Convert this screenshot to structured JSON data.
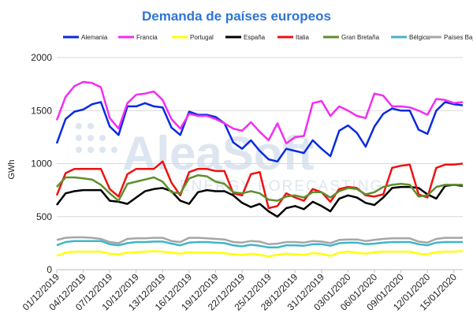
{
  "chart_data": {
    "type": "line",
    "title": "Demanda de países europeos",
    "xlabel": "",
    "ylabel": "GWh",
    "ylim": [
      0,
      2000
    ],
    "yticks": [
      0,
      500,
      1000,
      1500,
      2000
    ],
    "grid": "horizontal",
    "legend_position": "top",
    "watermark": {
      "big": "AleaSoft",
      "small": "ENERGY FORECASTING"
    },
    "x": [
      "01/12/2019",
      "02/12/2019",
      "03/12/2019",
      "04/12/2019",
      "05/12/2019",
      "06/12/2019",
      "07/12/2019",
      "08/12/2019",
      "09/12/2019",
      "10/12/2019",
      "11/12/2019",
      "12/12/2019",
      "13/12/2019",
      "14/12/2019",
      "15/12/2019",
      "16/12/2019",
      "17/12/2019",
      "18/12/2019",
      "19/12/2019",
      "20/12/2019",
      "21/12/2019",
      "22/12/2019",
      "23/12/2019",
      "24/12/2019",
      "25/12/2019",
      "26/12/2019",
      "27/12/2019",
      "28/12/2019",
      "29/12/2019",
      "30/12/2019",
      "31/12/2019",
      "01/01/2020",
      "02/01/2020",
      "03/01/2020",
      "04/01/2020",
      "05/01/2020",
      "06/01/2020",
      "07/01/2020",
      "08/01/2020",
      "09/01/2020",
      "10/01/2020",
      "11/01/2020",
      "12/01/2020",
      "13/01/2020",
      "14/01/2020",
      "15/01/2020",
      "16/01/2020"
    ],
    "xticks": [
      "01/12/2019",
      "04/12/2019",
      "07/12/2019",
      "10/12/2019",
      "13/12/2019",
      "16/12/2019",
      "19/12/2019",
      "22/12/2019",
      "25/12/2019",
      "28/12/2019",
      "31/12/2019",
      "03/01/2020",
      "06/01/2020",
      "09/01/2020",
      "12/01/2020",
      "15/01/2020"
    ],
    "series": [
      {
        "name": "Alemania",
        "color": "#0a2ae0",
        "values": [
          1190,
          1420,
          1490,
          1510,
          1560,
          1580,
          1350,
          1270,
          1540,
          1540,
          1570,
          1540,
          1530,
          1340,
          1270,
          1490,
          1460,
          1460,
          1440,
          1380,
          1200,
          1140,
          1220,
          1120,
          1040,
          1020,
          1140,
          1120,
          1100,
          1220,
          1140,
          1070,
          1310,
          1360,
          1290,
          1160,
          1350,
          1470,
          1520,
          1500,
          1500,
          1320,
          1280,
          1500,
          1580,
          1560,
          1550
        ]
      },
      {
        "name": "Francia",
        "color": "#f22ef2",
        "values": [
          1410,
          1630,
          1730,
          1770,
          1760,
          1720,
          1430,
          1330,
          1570,
          1650,
          1660,
          1680,
          1600,
          1420,
          1330,
          1470,
          1450,
          1450,
          1420,
          1380,
          1330,
          1310,
          1390,
          1300,
          1220,
          1380,
          1190,
          1250,
          1260,
          1570,
          1590,
          1450,
          1540,
          1500,
          1450,
          1430,
          1660,
          1640,
          1540,
          1540,
          1530,
          1500,
          1460,
          1610,
          1600,
          1570,
          1580
        ]
      },
      {
        "name": "Portugal",
        "color": "#ffff00",
        "values": [
          130,
          160,
          170,
          170,
          170,
          170,
          150,
          145,
          160,
          165,
          170,
          175,
          170,
          160,
          150,
          165,
          160,
          162,
          160,
          155,
          145,
          140,
          150,
          140,
          125,
          140,
          150,
          145,
          140,
          155,
          150,
          130,
          160,
          170,
          160,
          150,
          165,
          170,
          170,
          170,
          170,
          150,
          145,
          165,
          170,
          170,
          175
        ]
      },
      {
        "name": "España",
        "color": "#000000",
        "values": [
          610,
          720,
          740,
          750,
          750,
          750,
          650,
          640,
          620,
          680,
          740,
          760,
          770,
          740,
          650,
          620,
          730,
          750,
          740,
          740,
          700,
          630,
          590,
          620,
          550,
          500,
          580,
          600,
          570,
          640,
          600,
          550,
          670,
          700,
          680,
          630,
          610,
          680,
          770,
          780,
          780,
          770,
          710,
          670,
          790,
          800,
          790
        ]
      },
      {
        "name": "Italia",
        "color": "#ee1111",
        "values": [
          700,
          910,
          950,
          950,
          950,
          950,
          760,
          690,
          900,
          950,
          950,
          950,
          1020,
          820,
          700,
          920,
          950,
          950,
          930,
          930,
          720,
          700,
          900,
          920,
          580,
          600,
          720,
          680,
          650,
          760,
          730,
          640,
          760,
          780,
          770,
          700,
          690,
          710,
          960,
          980,
          990,
          710,
          680,
          960,
          990,
          990,
          1000
        ]
      },
      {
        "name": "Gran Bretaña",
        "color": "#5e8f2e",
        "values": [
          780,
          870,
          870,
          860,
          850,
          800,
          720,
          650,
          810,
          830,
          850,
          870,
          830,
          730,
          720,
          860,
          890,
          880,
          830,
          810,
          730,
          720,
          740,
          720,
          660,
          650,
          690,
          700,
          680,
          730,
          730,
          680,
          740,
          770,
          760,
          710,
          730,
          780,
          800,
          810,
          800,
          690,
          700,
          780,
          800,
          800,
          800
        ]
      },
      {
        "name": "Bélgica",
        "color": "#3fb6c8",
        "values": [
          230,
          260,
          270,
          270,
          270,
          270,
          240,
          230,
          250,
          260,
          260,
          265,
          265,
          245,
          230,
          255,
          260,
          260,
          255,
          250,
          230,
          220,
          235,
          225,
          210,
          210,
          230,
          230,
          225,
          240,
          240,
          225,
          250,
          255,
          255,
          240,
          245,
          255,
          260,
          260,
          260,
          240,
          230,
          255,
          260,
          260,
          260
        ]
      },
      {
        "name": "Países Bajos",
        "color": "#a6a6a6",
        "values": [
          280,
          300,
          305,
          305,
          300,
          290,
          260,
          250,
          290,
          295,
          295,
          300,
          300,
          270,
          260,
          300,
          300,
          295,
          290,
          285,
          260,
          255,
          270,
          265,
          240,
          245,
          260,
          260,
          255,
          270,
          265,
          250,
          280,
          285,
          285,
          270,
          280,
          290,
          295,
          295,
          295,
          265,
          255,
          290,
          300,
          300,
          300
        ]
      }
    ]
  }
}
